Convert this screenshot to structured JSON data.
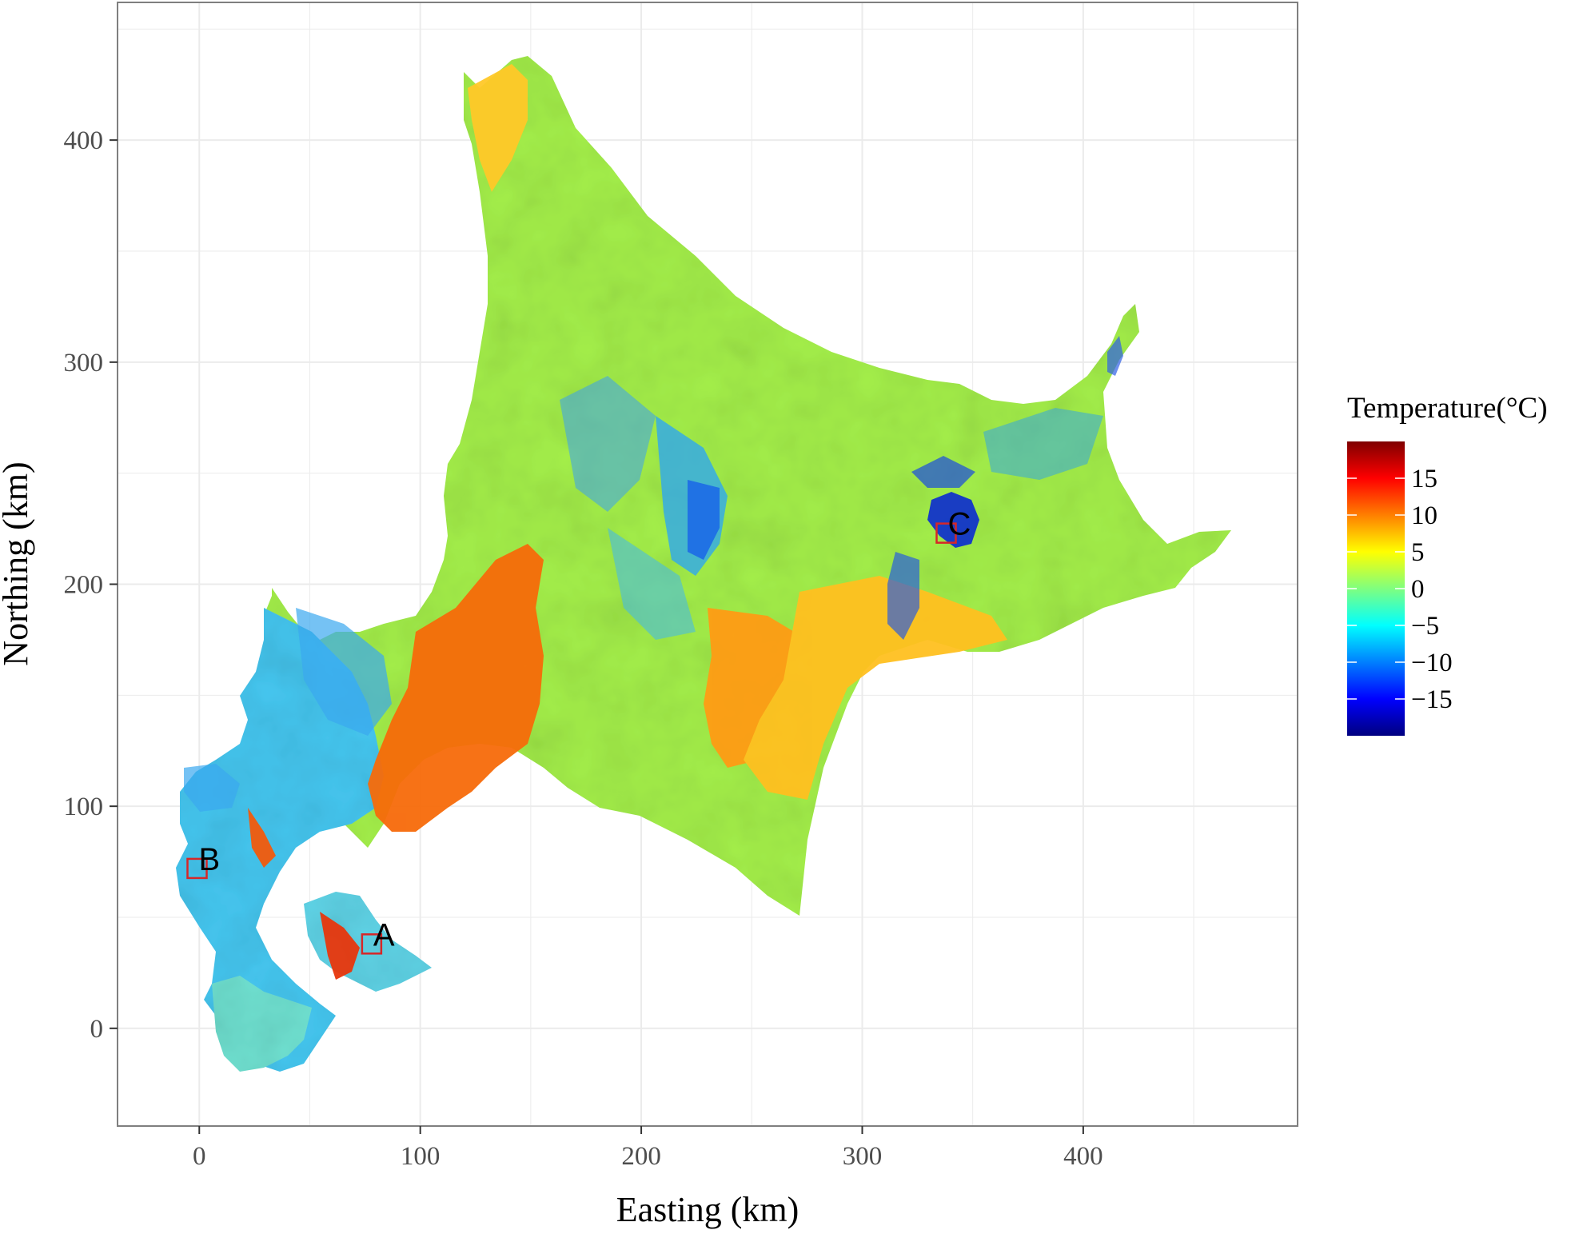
{
  "chart_data": {
    "type": "heatmap",
    "xlabel": "Easting (km)",
    "ylabel": "Northing (km)",
    "xlim": [
      -37,
      497
    ],
    "ylim": [
      -44,
      462
    ],
    "x_ticks": [
      0,
      100,
      200,
      300,
      400
    ],
    "y_ticks": [
      0,
      100,
      200,
      300,
      400
    ],
    "x_tick_labels": [
      "0",
      "100",
      "200",
      "300",
      "400"
    ],
    "y_tick_labels": [
      "0",
      "100",
      "200",
      "300",
      "400"
    ],
    "grid": true,
    "legend": {
      "title": "Temperature(°C)",
      "placement": "right",
      "min": -20,
      "max": 20,
      "ticks": [
        15,
        10,
        5,
        0,
        -5,
        -10,
        -15
      ],
      "tick_labels": [
        "15",
        "10",
        "5",
        "0",
        "−5",
        "−10",
        "−15"
      ],
      "colors": [
        "#00007f",
        "#0000ff",
        "#007fff",
        "#00ffff",
        "#7fff7f",
        "#ffff00",
        "#ff7f00",
        "#ff0000",
        "#7f0000"
      ]
    },
    "sites": [
      {
        "label": "A",
        "x": 78,
        "y": 38
      },
      {
        "label": "B",
        "x": -1,
        "y": 72
      },
      {
        "label": "C",
        "x": 338,
        "y": 223
      }
    ],
    "colors": {
      "panel_border": "#7f7f7f",
      "grid_major": "#ebebeb",
      "site_box": "#d62728"
    }
  }
}
